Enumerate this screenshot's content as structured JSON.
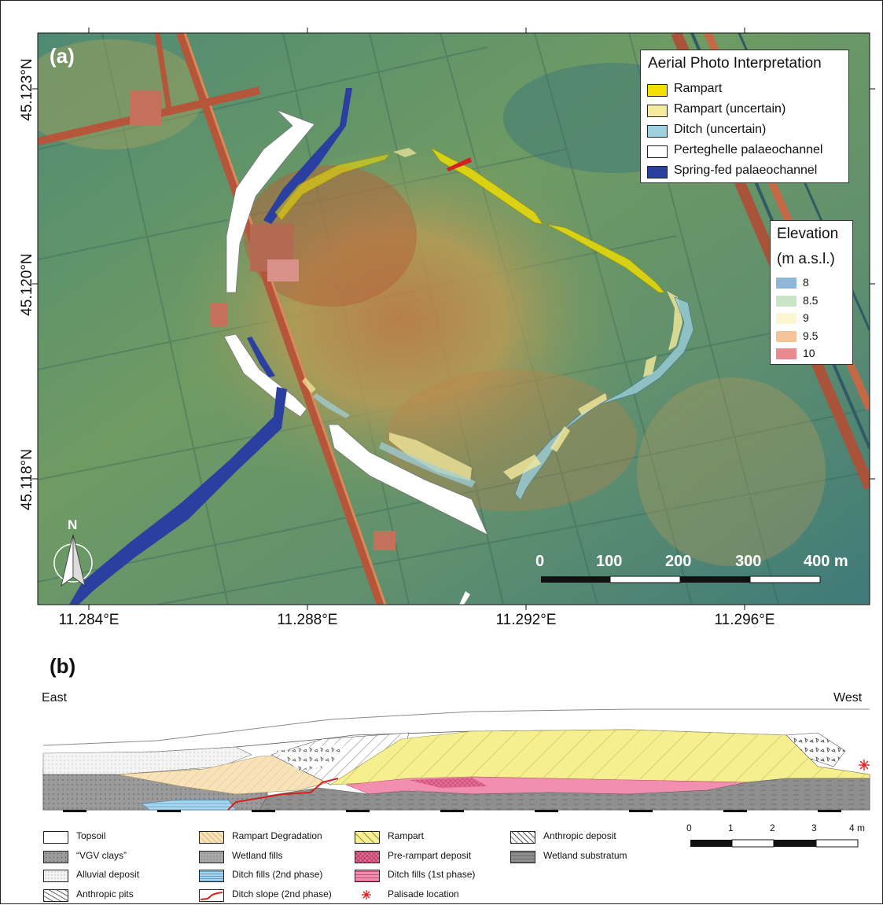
{
  "panel_a": {
    "label": "(a)",
    "lat_ticks": [
      "45.123°N",
      "45.120°N",
      "45.118°N"
    ],
    "lon_ticks": [
      "11.284°E",
      "11.288°E",
      "11.292°E",
      "11.296°E"
    ],
    "north_label": "N",
    "scale_labels": [
      "0",
      "100",
      "200",
      "300",
      "400 m"
    ],
    "legend_interp": {
      "title": "Aerial Photo Interpretation",
      "items": [
        {
          "label": "Rampart",
          "color": "#f2e000"
        },
        {
          "label": "Rampart (uncertain)",
          "color": "#f5ea9e"
        },
        {
          "label": "Ditch (uncertain)",
          "color": "#9fd0e0"
        },
        {
          "label": "Perteghelle palaeochannel",
          "color": "#ffffff"
        },
        {
          "label": "Spring-fed palaeochannel",
          "color": "#2a3fa0"
        }
      ]
    },
    "legend_elev": {
      "title1": "Elevation",
      "title2": "(m a.s.l.)",
      "items": [
        {
          "label": "8",
          "color": "#8fb8d8"
        },
        {
          "label": "8.5",
          "color": "#c9e4c6"
        },
        {
          "label": "9",
          "color": "#fbf5d2"
        },
        {
          "label": "9.5",
          "color": "#f6c49a"
        },
        {
          "label": "10",
          "color": "#e88a8f"
        }
      ]
    }
  },
  "panel_b": {
    "label": "(b)",
    "east_label": "East",
    "west_label": "West",
    "scale_labels": [
      "0",
      "1",
      "2",
      "3",
      "4 m"
    ],
    "legend": [
      {
        "label": "Topsoil",
        "fill": "#ffffff"
      },
      {
        "label": "“VGV clays”",
        "fill": "#9a9a9a"
      },
      {
        "label": "Alluvial deposit",
        "fill": "#f1f1f1"
      },
      {
        "label": "Anthropic pits",
        "fill": "#e6e6e6"
      },
      {
        "label": "Rampart Degradation",
        "fill": "#f8e2b8"
      },
      {
        "label": "Wetland fills",
        "fill": "#a8a8a8"
      },
      {
        "label": "Ditch fills (2nd phase)",
        "fill": "#a9d6ee"
      },
      {
        "label": "Ditch slope (2nd phase)",
        "fill": "#d42020"
      },
      {
        "label": "Rampart",
        "fill": "#f5ef8f"
      },
      {
        "label": "Pre-rampart deposit",
        "fill": "#e56b92"
      },
      {
        "label": "Ditch fills (1st phase)",
        "fill": "#f28fb0"
      },
      {
        "label": "Palisade location",
        "fill": "#e01f1f"
      },
      {
        "label": "Anthropic deposit",
        "fill": "#ffffff"
      },
      {
        "label": "Wetland substratum",
        "fill": "#8f8f8f"
      }
    ]
  }
}
